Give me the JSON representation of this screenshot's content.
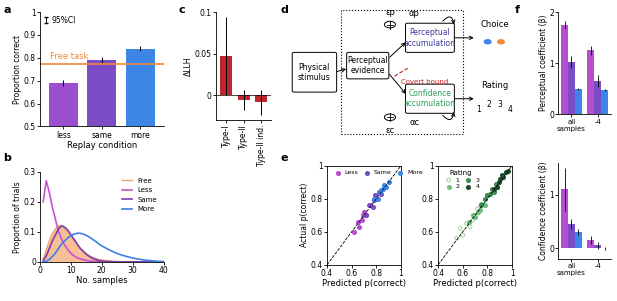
{
  "chart_data": [
    {
      "panel": "a",
      "type": "bar",
      "categories": [
        "less",
        "same",
        "more"
      ],
      "values": [
        0.69,
        0.79,
        0.84
      ],
      "error": [
        0.012,
        0.012,
        0.012
      ],
      "colors": [
        "#9b4fcf",
        "#7b4cc4",
        "#3d86e8"
      ],
      "xlabel": "Replay condition",
      "ylabel": "Proportion correct",
      "ylim": [
        0.5,
        1
      ],
      "yticks": [
        0.5,
        0.6,
        0.7,
        0.8,
        0.9,
        1
      ],
      "reference_line": {
        "label": "Free task",
        "value": 0.775,
        "color": "#f08a3c"
      },
      "error_legend": "95%CI"
    },
    {
      "panel": "b",
      "type": "line",
      "xlabel": "No. samples",
      "ylabel": "Proportion of trials",
      "x": [
        1,
        2,
        3,
        4,
        5,
        6,
        7,
        8,
        9,
        10,
        11,
        12,
        13,
        14,
        15,
        16,
        17,
        18,
        19,
        20,
        22,
        24,
        26,
        28,
        30,
        32,
        34,
        36,
        38,
        40
      ],
      "xlim": [
        0,
        40
      ],
      "xticks": [
        0,
        10,
        20,
        30,
        40
      ],
      "ylim": [
        0,
        0.3
      ],
      "yticks": [
        0,
        0.1,
        0.2,
        0.3
      ],
      "legend": "upper right",
      "series": [
        {
          "name": "Free",
          "type": "area",
          "color": "#f4a46a",
          "values": [
            0.01,
            0.04,
            0.07,
            0.095,
            0.11,
            0.12,
            0.12,
            0.11,
            0.1,
            0.085,
            0.07,
            0.055,
            0.045,
            0.035,
            0.027,
            0.02,
            0.015,
            0.011,
            0.008,
            0.006,
            0.004,
            0.002,
            0.001,
            0,
            0,
            0,
            0,
            0,
            0,
            0
          ]
        },
        {
          "name": "Less",
          "type": "line",
          "color": "#cc4fd8",
          "values": [
            0.2,
            0.27,
            0.23,
            0.18,
            0.14,
            0.1,
            0.075,
            0.055,
            0.04,
            0.028,
            0.02,
            0.014,
            0.01,
            0.007,
            0.005,
            0.003,
            0.002,
            0.001,
            0.001,
            0,
            0,
            0,
            0,
            0,
            0,
            0,
            0,
            0,
            0,
            0
          ]
        },
        {
          "name": "Same",
          "type": "line",
          "color": "#7d3fb0",
          "values": [
            0.005,
            0.02,
            0.045,
            0.07,
            0.09,
            0.11,
            0.12,
            0.115,
            0.105,
            0.09,
            0.075,
            0.06,
            0.045,
            0.035,
            0.025,
            0.018,
            0.012,
            0.008,
            0.005,
            0.003,
            0.001,
            0,
            0,
            0,
            0,
            0,
            0,
            0,
            0,
            0
          ]
        },
        {
          "name": "More",
          "type": "line",
          "color": "#3a80e8",
          "values": [
            0,
            0.002,
            0.008,
            0.018,
            0.03,
            0.045,
            0.06,
            0.07,
            0.08,
            0.088,
            0.092,
            0.095,
            0.095,
            0.092,
            0.088,
            0.082,
            0.075,
            0.068,
            0.06,
            0.053,
            0.042,
            0.032,
            0.024,
            0.018,
            0.013,
            0.009,
            0.006,
            0.004,
            0.002,
            0.001
          ]
        }
      ]
    },
    {
      "panel": "c",
      "type": "bar",
      "categories": [
        "Type-I",
        "Type-II",
        "Type-II ind."
      ],
      "values": [
        0.047,
        -0.005,
        -0.008
      ],
      "error": [
        0.047,
        0.012,
        0.015
      ],
      "color": "#c0262d",
      "ylabel": "ΔLLH",
      "ylim": [
        -0.03,
        0.1
      ],
      "yticks": [
        0,
        0.05,
        0.1
      ]
    },
    {
      "panel": "e",
      "type": "scatter",
      "xlabel": "Predicted p(correct)",
      "ylabel": "Actual p(correct)",
      "xlim": [
        0.4,
        1
      ],
      "xticks": [
        0.4,
        0.6,
        0.8,
        1
      ],
      "ylim": [
        0.4,
        1
      ],
      "yticks": [
        0.4,
        0.6,
        0.8,
        1
      ],
      "legend": "upper left",
      "series": [
        {
          "name": "Less",
          "color": "#b44fd0",
          "marker": "circle",
          "x": [
            0.62,
            0.65,
            0.68,
            0.7,
            0.72,
            0.66,
            0.74,
            0.69
          ],
          "values": [
            0.6,
            0.66,
            0.67,
            0.72,
            0.7,
            0.63,
            0.76,
            0.7
          ]
        },
        {
          "name": "Same",
          "color": "#7b4cc4",
          "marker": "circle",
          "x": [
            0.72,
            0.75,
            0.78,
            0.8,
            0.82,
            0.77,
            0.84,
            0.79
          ],
          "values": [
            0.7,
            0.76,
            0.79,
            0.8,
            0.84,
            0.75,
            0.83,
            0.82
          ]
        },
        {
          "name": "More",
          "color": "#3d86e8",
          "marker": "circle",
          "x": [
            0.78,
            0.81,
            0.84,
            0.86,
            0.88,
            0.83,
            0.9,
            0.85
          ],
          "values": [
            0.8,
            0.8,
            0.85,
            0.88,
            0.87,
            0.84,
            0.9,
            0.86
          ]
        }
      ]
    },
    {
      "type": "scatter",
      "xlabel": "Predicted p(correct)",
      "xlim": [
        0.4,
        1
      ],
      "xticks": [
        0.4,
        0.6,
        0.8,
        1
      ],
      "ylim": [
        0.4,
        1
      ],
      "yticks": [
        0.4,
        0.6,
        0.8,
        1
      ],
      "legend": "upper left",
      "legend_title": "Rating",
      "series": [
        {
          "name": "1",
          "color": "#9fd39a",
          "marker": "open_circle",
          "x": [
            0.55,
            0.6,
            0.63,
            0.66,
            0.7,
            0.58,
            0.72,
            0.68
          ],
          "values": [
            0.56,
            0.58,
            0.65,
            0.63,
            0.7,
            0.62,
            0.74,
            0.67
          ]
        },
        {
          "name": "2",
          "color": "#6fbf7d",
          "marker": "circle",
          "x": [
            0.65,
            0.68,
            0.72,
            0.75,
            0.78,
            0.7,
            0.8,
            0.74
          ],
          "values": [
            0.66,
            0.7,
            0.72,
            0.77,
            0.76,
            0.69,
            0.82,
            0.73
          ]
        },
        {
          "name": "3",
          "color": "#3d8c55",
          "marker": "circle",
          "x": [
            0.75,
            0.78,
            0.82,
            0.85,
            0.87,
            0.8,
            0.88,
            0.84
          ],
          "values": [
            0.76,
            0.8,
            0.83,
            0.84,
            0.89,
            0.82,
            0.87,
            0.86
          ]
        },
        {
          "name": "4",
          "color": "#1f4d2e",
          "marker": "circle",
          "x": [
            0.85,
            0.88,
            0.9,
            0.93,
            0.95,
            0.89,
            0.97,
            0.92
          ],
          "values": [
            0.86,
            0.87,
            0.92,
            0.93,
            0.96,
            0.9,
            0.97,
            0.94
          ]
        }
      ]
    },
    {
      "panel": "f",
      "type": "bar",
      "categories": [
        "all\nsamples",
        "-4"
      ],
      "ylabel": "Perceptual coefficient (β)",
      "ylim": [
        0,
        2
      ],
      "yticks": [
        0,
        1,
        2
      ],
      "series": [
        {
          "name": "Less",
          "color": "#b44fd0",
          "values": [
            1.75,
            1.25
          ],
          "error": [
            0.08,
            0.08
          ]
        },
        {
          "name": "Same",
          "color": "#7b4cc4",
          "values": [
            1.03,
            0.65
          ],
          "error": [
            0.12,
            0.12
          ]
        },
        {
          "name": "More",
          "color": "#3d86e8",
          "values": [
            0.5,
            0.47
          ],
          "error": [
            0.02,
            0.02
          ]
        }
      ]
    },
    {
      "type": "bar",
      "categories": [
        "all\nsamples",
        "-4"
      ],
      "ylabel": "Confidence coefficient (β)",
      "ylim": [
        -0.2,
        1.6
      ],
      "yticks": [
        0,
        1
      ],
      "series": [
        {
          "name": "Less",
          "color": "#b44fd0",
          "values": [
            1.1,
            0.15
          ],
          "error": [
            0.4,
            0.08
          ]
        },
        {
          "name": "Same",
          "color": "#7b4cc4",
          "values": [
            0.45,
            0.05
          ],
          "error": [
            0.1,
            0.06
          ]
        },
        {
          "name": "More",
          "color": "#3d86e8",
          "values": [
            0.3,
            0.0
          ],
          "error": [
            0.05,
            0.03
          ]
        }
      ]
    }
  ],
  "diagram": {
    "panel": "d",
    "nodes": [
      {
        "label": "Physical stimulus",
        "color": "#000000"
      },
      {
        "label": "Perceptual evidence",
        "color": "#000000"
      },
      {
        "label": "Perceptual accumulation",
        "color": "#3a3aa0"
      },
      {
        "label": "Confidence accumulation",
        "color": "#2f9a5a"
      },
      {
        "label": "Choice",
        "color": "#000000"
      },
      {
        "label": "Rating",
        "color": "#000000"
      }
    ],
    "noise": [
      "εp",
      "εc"
    ],
    "leak": [
      "αp",
      "αc"
    ],
    "bound_label": "Covert bound",
    "bound_color": "#d02020",
    "rating_scale": [
      "1",
      "2",
      "3",
      "4"
    ]
  }
}
